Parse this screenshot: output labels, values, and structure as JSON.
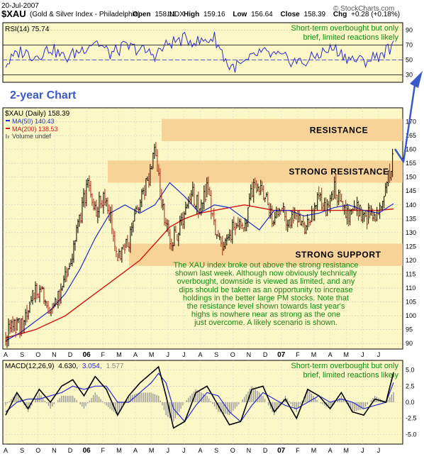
{
  "chart_data": {
    "type": "line",
    "header": {
      "date": "20-Jul-2007",
      "symbol": "$XAU",
      "subtitle": "(Gold & Silver Index - Philadelphia)",
      "exchange": "INDX",
      "copyright": "© StockCharts.com",
      "open_label": "Open",
      "open": "158.11",
      "high_label": "High",
      "high": "159.16",
      "low_label": "Low",
      "low": "156.64",
      "close_label": "Close",
      "close": "158.39",
      "chg_label": "Chg",
      "chg": "+0.28 (+0.18%)"
    },
    "rsi": {
      "label": "RSI(14) 75.74",
      "ylim": [
        20,
        100
      ],
      "ticks": [
        "90",
        "70",
        "50",
        "30"
      ],
      "guide_levels": [
        70,
        30
      ],
      "note": [
        "Short-term overbought but only",
        "brief, limited reactions likely"
      ],
      "series": {
        "name": "RSI(14)",
        "x": [
          0,
          4,
          8,
          12,
          16,
          20,
          24,
          28,
          32,
          36,
          40,
          44,
          48,
          52,
          56,
          60,
          64,
          68,
          72,
          76,
          80,
          84,
          88,
          92,
          96,
          100,
          103,
          104
        ],
        "values": [
          44,
          62,
          55,
          66,
          52,
          63,
          76,
          58,
          68,
          64,
          57,
          73,
          78,
          74,
          80,
          40,
          44,
          60,
          56,
          50,
          46,
          58,
          66,
          52,
          48,
          56,
          66,
          75.74
        ]
      }
    },
    "price": {
      "legend": {
        "symbol": "$XAU (Daily) 158.39",
        "ma50": "MA(50) 140.43",
        "ma200": "MA(200) 138.53",
        "volume": "Volume undef"
      },
      "ylim": [
        88,
        175
      ],
      "ticks": [
        "170",
        "165",
        "160",
        "155",
        "150",
        "145",
        "140",
        "135",
        "130",
        "125",
        "120",
        "115",
        "110",
        "105",
        "100",
        "95",
        "90"
      ],
      "label_2yr": "2-year Chart",
      "bands": [
        {
          "label": "RESISTANCE",
          "from": 163,
          "to": 171
        },
        {
          "label": "STRONG RESISTANCE",
          "from": 148,
          "to": 156
        },
        {
          "label": "STRONG SUPPORT",
          "from": 118,
          "to": 126
        }
      ],
      "commentary": [
        "The XAU index broke out above the strong resistance",
        "shown last week. Although now obviously technically",
        "overbought, downside is viewed as limited, and any",
        "dips should be taken as an opportunity to increase",
        "holdings in the better large PM stocks. Note that",
        "the resistance level shown towards last year's",
        "highs is nowhere near as strong as the one",
        "just overcome. A likely scenario is shown."
      ],
      "close": {
        "name": "$XAU (Daily)",
        "x": [
          0,
          2,
          4,
          6,
          8,
          10,
          12,
          14,
          16,
          18,
          20,
          22,
          24,
          26,
          28,
          30,
          32,
          34,
          36,
          38,
          40,
          42,
          44,
          46,
          48,
          50,
          52,
          54,
          56,
          58,
          60,
          62,
          64,
          66,
          68,
          70,
          72,
          74,
          76,
          78,
          80,
          82,
          84,
          86,
          88,
          90,
          92,
          94,
          96,
          98,
          100,
          102,
          104
        ],
        "values": [
          93,
          97,
          96,
          100,
          110,
          108,
          102,
          106,
          115,
          124,
          136,
          148,
          138,
          142,
          136,
          123,
          124,
          130,
          143,
          148,
          160,
          140,
          125,
          130,
          136,
          145,
          138,
          146,
          132,
          124,
          128,
          135,
          130,
          146,
          145,
          143,
          133,
          140,
          133,
          137,
          131,
          136,
          142,
          138,
          146,
          141,
          136,
          140,
          134,
          138,
          135,
          146,
          158.39
        ]
      },
      "ma50": {
        "name": "MA(50)",
        "x": [
          0,
          4,
          8,
          12,
          16,
          20,
          24,
          28,
          32,
          36,
          40,
          44,
          48,
          52,
          56,
          60,
          64,
          68,
          72,
          76,
          80,
          84,
          88,
          92,
          96,
          100,
          104
        ],
        "values": [
          91,
          94,
          98,
          102,
          108,
          117,
          128,
          137,
          140,
          137,
          140,
          148,
          143,
          137,
          140,
          139,
          135,
          131,
          138,
          138,
          136,
          137,
          139,
          140,
          138,
          137,
          140.43
        ]
      },
      "ma200": {
        "name": "MA(200)",
        "x": [
          0,
          8,
          16,
          24,
          30,
          36,
          40,
          44,
          48,
          52,
          56,
          60,
          64,
          68,
          72,
          76,
          80,
          84,
          88,
          92,
          96,
          100,
          104
        ],
        "values": [
          92,
          95,
          100,
          108,
          114,
          120,
          126,
          132,
          135,
          137,
          138,
          139,
          140,
          139,
          138,
          138,
          138,
          138,
          138,
          138,
          138,
          138,
          138.53
        ]
      }
    },
    "macd": {
      "label": "MACD(12,26,9)",
      "macd_value": "4.630,",
      "signal_value": "3.054,",
      "hist_value": "1.577",
      "ylim": [
        -6.5,
        6.5
      ],
      "ticks": [
        "5.0",
        "2.5",
        "0.0",
        "-2.5",
        "-5.0"
      ],
      "note": [
        "Short-term overbought but only",
        "brief, limited reactions likely"
      ],
      "macd_line": {
        "x": [
          0,
          3,
          6,
          9,
          12,
          15,
          18,
          21,
          24,
          27,
          30,
          33,
          36,
          39,
          41,
          43,
          45,
          48,
          51,
          54,
          57,
          60,
          63,
          66,
          69,
          72,
          75,
          78,
          81,
          84,
          87,
          90,
          93,
          96,
          99,
          102,
          104
        ],
        "values": [
          -2,
          1.5,
          -1,
          2,
          0,
          2.5,
          3.5,
          1,
          4,
          2,
          -2,
          1,
          3,
          4.5,
          5.5,
          1,
          -4,
          -3,
          1.5,
          2.5,
          -0.5,
          -3.5,
          -3,
          2,
          2.5,
          -1.5,
          0.5,
          -2.5,
          2,
          1,
          -1,
          1.5,
          -1.5,
          -2,
          0.5,
          0,
          4.63
        ]
      },
      "signal_line": {
        "x": [
          0,
          3,
          6,
          9,
          12,
          15,
          18,
          21,
          24,
          27,
          30,
          33,
          36,
          39,
          41,
          43,
          45,
          48,
          51,
          54,
          57,
          60,
          63,
          66,
          69,
          72,
          75,
          78,
          81,
          84,
          87,
          90,
          93,
          96,
          99,
          102,
          104
        ],
        "values": [
          -1.5,
          0,
          0.5,
          0.5,
          1,
          1.5,
          2.5,
          2,
          2.5,
          2.5,
          0,
          0,
          1.5,
          3,
          4.5,
          3,
          -1,
          -3,
          -0.5,
          1.5,
          1,
          -1.5,
          -3,
          -0.5,
          1.5,
          0.5,
          -0.5,
          -1,
          0,
          1,
          0,
          0.5,
          0,
          -1,
          -0.5,
          0,
          3.054
        ]
      }
    },
    "x_axis": {
      "range": [
        0,
        104
      ],
      "months": [
        {
          "label": "A",
          "x": 0,
          "bold": false
        },
        {
          "label": "S",
          "x": 4.4,
          "bold": false
        },
        {
          "label": "O",
          "x": 8.7,
          "bold": false
        },
        {
          "label": "N",
          "x": 13.0,
          "bold": false
        },
        {
          "label": "D",
          "x": 17.3,
          "bold": false
        },
        {
          "label": "06",
          "x": 21.7,
          "bold": true
        },
        {
          "label": "F",
          "x": 26.1,
          "bold": false
        },
        {
          "label": "M",
          "x": 30.4,
          "bold": false
        },
        {
          "label": "A",
          "x": 34.8,
          "bold": false
        },
        {
          "label": "M",
          "x": 39.1,
          "bold": false
        },
        {
          "label": "J",
          "x": 43.5,
          "bold": false
        },
        {
          "label": "J",
          "x": 47.8,
          "bold": false
        },
        {
          "label": "A",
          "x": 52.2,
          "bold": false
        },
        {
          "label": "S",
          "x": 56.5,
          "bold": false
        },
        {
          "label": "O",
          "x": 60.9,
          "bold": false
        },
        {
          "label": "N",
          "x": 65.2,
          "bold": false
        },
        {
          "label": "D",
          "x": 69.6,
          "bold": false
        },
        {
          "label": "07",
          "x": 73.9,
          "bold": true
        },
        {
          "label": "F",
          "x": 78.3,
          "bold": false
        },
        {
          "label": "M",
          "x": 82.6,
          "bold": false
        },
        {
          "label": "A",
          "x": 87.0,
          "bold": false
        },
        {
          "label": "M",
          "x": 91.3,
          "bold": false
        },
        {
          "label": "J",
          "x": 95.7,
          "bold": false
        },
        {
          "label": "J",
          "x": 100.0,
          "bold": false
        }
      ]
    }
  }
}
